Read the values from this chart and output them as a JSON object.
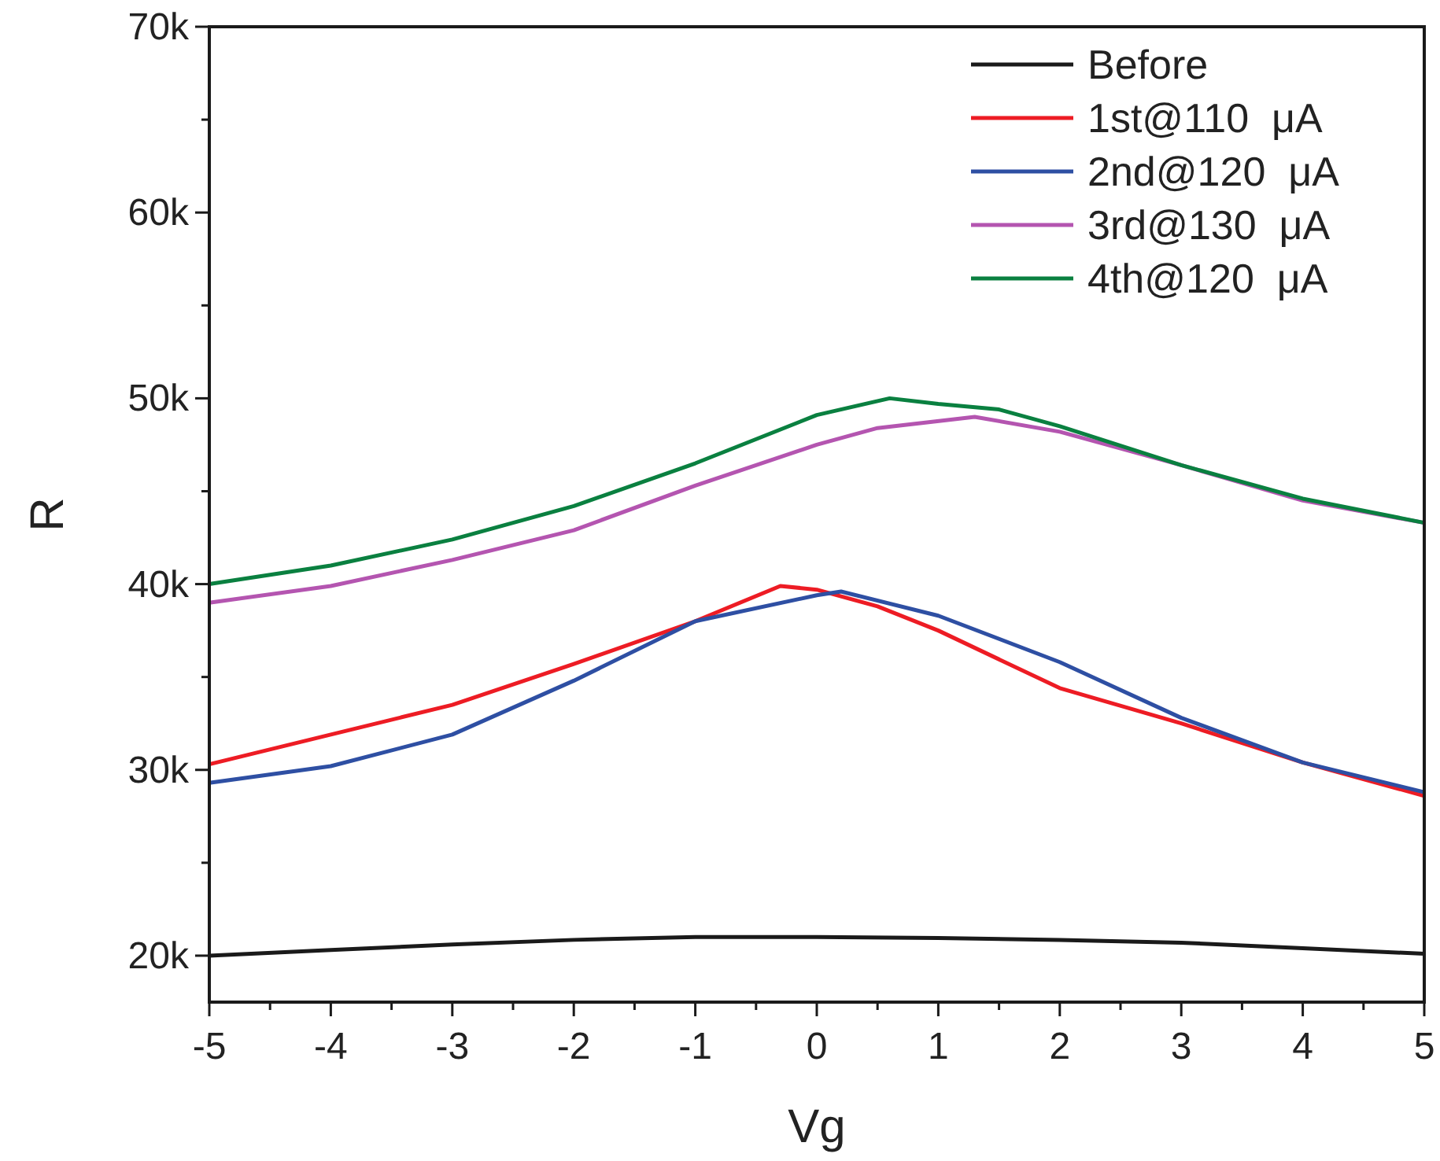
{
  "chart_data": {
    "type": "line",
    "xlabel": "Vg",
    "ylabel": "R",
    "xlim": [
      -5,
      5
    ],
    "xticks": [
      -5,
      {
        "value": -4.5,
        "label": null
      },
      -4,
      {
        "value": -3.5,
        "label": null
      },
      -3,
      {
        "value": -2.5,
        "label": null
      },
      -2,
      {
        "value": -1.5,
        "label": null
      },
      -1,
      {
        "value": -0.5,
        "label": null
      },
      0,
      {
        "value": 0.5,
        "label": null
      },
      1,
      {
        "value": 1.5,
        "label": null
      },
      2,
      {
        "value": 2.5,
        "label": null
      },
      3,
      {
        "value": 3.5,
        "label": null
      },
      4,
      {
        "value": 4.5,
        "label": null
      },
      5
    ],
    "ylim": [
      17500,
      70000
    ],
    "yticks": [
      {
        "value": 20000,
        "label": "20k"
      },
      {
        "value": 25000,
        "label": null
      },
      {
        "value": 30000,
        "label": "30k"
      },
      {
        "value": 35000,
        "label": null
      },
      {
        "value": 40000,
        "label": "40k"
      },
      {
        "value": 45000,
        "label": null
      },
      {
        "value": 50000,
        "label": "50k"
      },
      {
        "value": 55000,
        "label": null
      },
      {
        "value": 60000,
        "label": "60k"
      },
      {
        "value": 65000,
        "label": null
      },
      {
        "value": 70000,
        "label": "70k"
      }
    ],
    "legend": "top right",
    "grid": false,
    "line_style": "solid",
    "marker": "none",
    "series": [
      {
        "name": "Before",
        "color": "#1a1a1a",
        "x": [
          -5,
          -4,
          -3,
          -2,
          -1,
          0,
          1,
          2,
          3,
          4,
          5
        ],
        "values": [
          20000,
          20300,
          20600,
          20850,
          21000,
          21000,
          20950,
          20850,
          20700,
          20400,
          20100
        ]
      },
      {
        "name": "1st@110  μA",
        "color": "#ed1c24",
        "x": [
          -5,
          -4,
          -3,
          -2,
          -1,
          -0.3,
          0,
          0.5,
          1,
          2,
          3,
          4,
          5
        ],
        "values": [
          30300,
          31900,
          33500,
          35700,
          38000,
          39900,
          39700,
          38800,
          37500,
          34400,
          32500,
          30400,
          28600
        ]
      },
      {
        "name": "2nd@120  μA",
        "color": "#2e4fa3",
        "x": [
          -5,
          -4,
          -3,
          -2,
          -1,
          0,
          0.2,
          1,
          2,
          3,
          4,
          5
        ],
        "values": [
          29300,
          30200,
          31900,
          34800,
          38000,
          39400,
          39600,
          38300,
          35800,
          32800,
          30400,
          28800
        ]
      },
      {
        "name": "3rd@130  μA",
        "color": "#b455b0",
        "x": [
          -5,
          -4,
          -3,
          -2,
          -1,
          0,
          0.5,
          1.3,
          2,
          3,
          4,
          5
        ],
        "values": [
          39000,
          39900,
          41300,
          42900,
          45300,
          47500,
          48400,
          49000,
          48200,
          46400,
          44500,
          43300
        ]
      },
      {
        "name": "4th@120  μA",
        "color": "#0a8040",
        "x": [
          -5,
          -4,
          -3,
          -2,
          -1,
          0,
          0.6,
          1,
          1.5,
          2,
          3,
          4,
          5
        ],
        "values": [
          40000,
          41000,
          42400,
          44200,
          46500,
          49100,
          50000,
          49700,
          49400,
          48500,
          46400,
          44600,
          43300
        ]
      }
    ]
  }
}
